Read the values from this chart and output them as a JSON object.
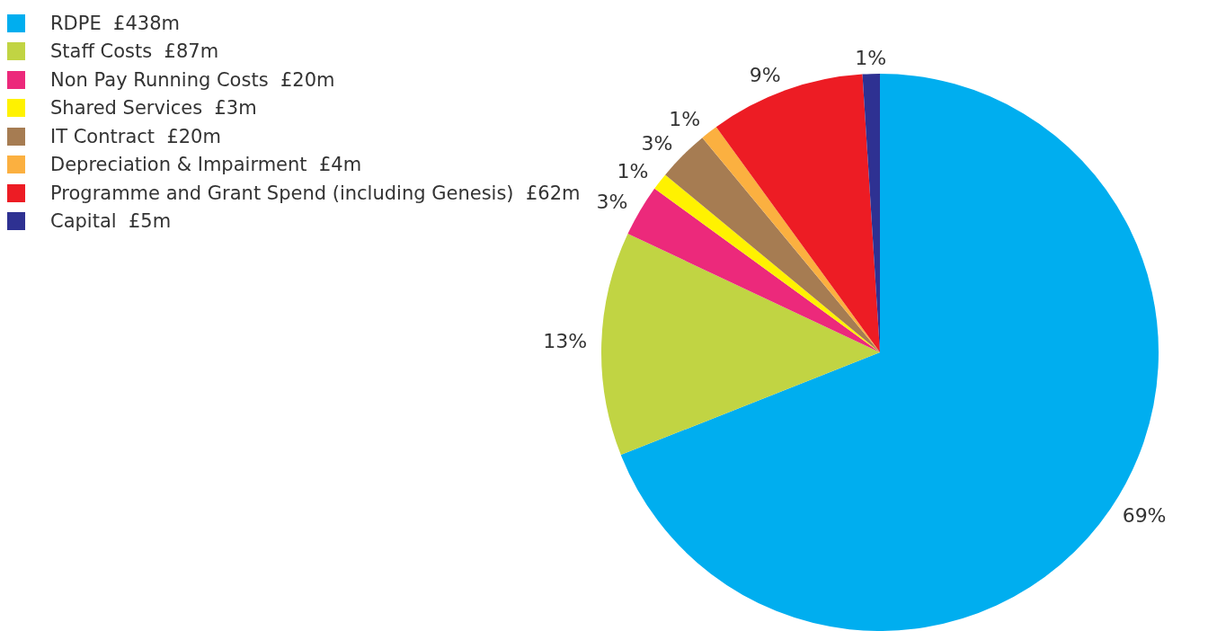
{
  "chart_data": {
    "type": "pie",
    "categories": [
      "RDPE  £438m",
      "Staff Costs  £87m",
      "Non Pay Running Costs  £20m",
      "Shared Services  £3m",
      "IT Contract  £20m",
      "Depreciation & Impairment  £4m",
      "Programme and Grant Spend (including Genesis)  £62m",
      "Capital  £5m"
    ],
    "values": [
      69,
      13,
      3,
      1,
      3,
      1,
      9,
      1
    ],
    "colors": [
      "#00aeef",
      "#c1d443",
      "#ec297b",
      "#fff200",
      "#a67c52",
      "#fbb040",
      "#ed1c24",
      "#2e3192"
    ],
    "value_labels": [
      "69%",
      "13%",
      "3%",
      "1%",
      "3%",
      "1%",
      "9%",
      "1%"
    ],
    "legend": "top left"
  }
}
